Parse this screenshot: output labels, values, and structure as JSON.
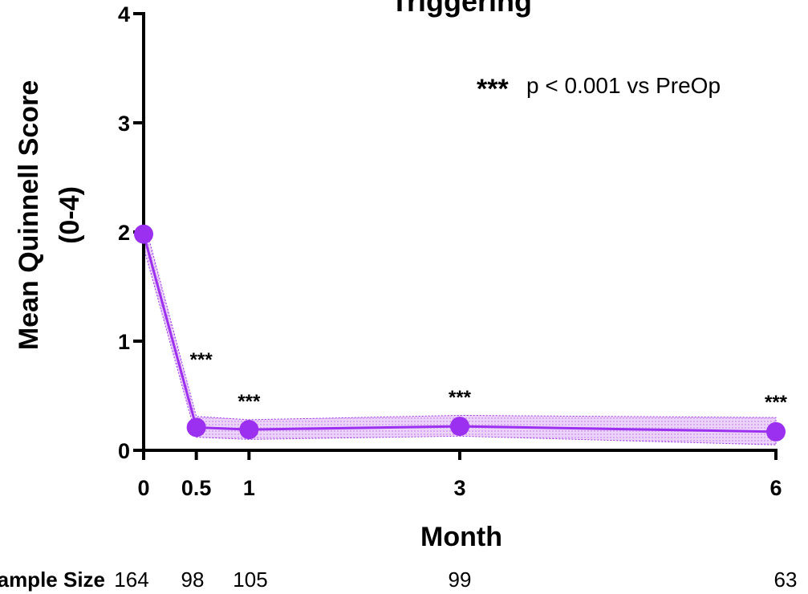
{
  "chart_data": {
    "type": "line",
    "title": "Triggering",
    "xlabel": "Month",
    "ylabel": "Mean Quinnell Score",
    "ylabel_unit": "(0-4)",
    "x": [
      0,
      0.5,
      1,
      3,
      6
    ],
    "x_tick_labels": [
      "0",
      "0.5",
      "1",
      "3",
      "6"
    ],
    "y_tick_labels": [
      "0",
      "1",
      "2",
      "3",
      "4"
    ],
    "xlim": [
      0,
      6
    ],
    "ylim": [
      0,
      4
    ],
    "series": [
      {
        "values": [
          1.98,
          0.21,
          0.19,
          0.22,
          0.17
        ],
        "band_upper": [
          2.12,
          0.31,
          0.28,
          0.32,
          0.3
        ],
        "band_lower": [
          1.86,
          0.12,
          0.1,
          0.13,
          0.05
        ],
        "color": "#9b30f0"
      }
    ],
    "significance_markers": [
      "",
      "***",
      "***",
      "***",
      "***"
    ],
    "legend_note": {
      "stars": "***",
      "text": "p < 0.001 vs PreOp"
    },
    "sample_size": {
      "label": "Sample Size",
      "values": [
        "164",
        "98",
        "105",
        "99",
        "63"
      ]
    },
    "grid": false
  }
}
